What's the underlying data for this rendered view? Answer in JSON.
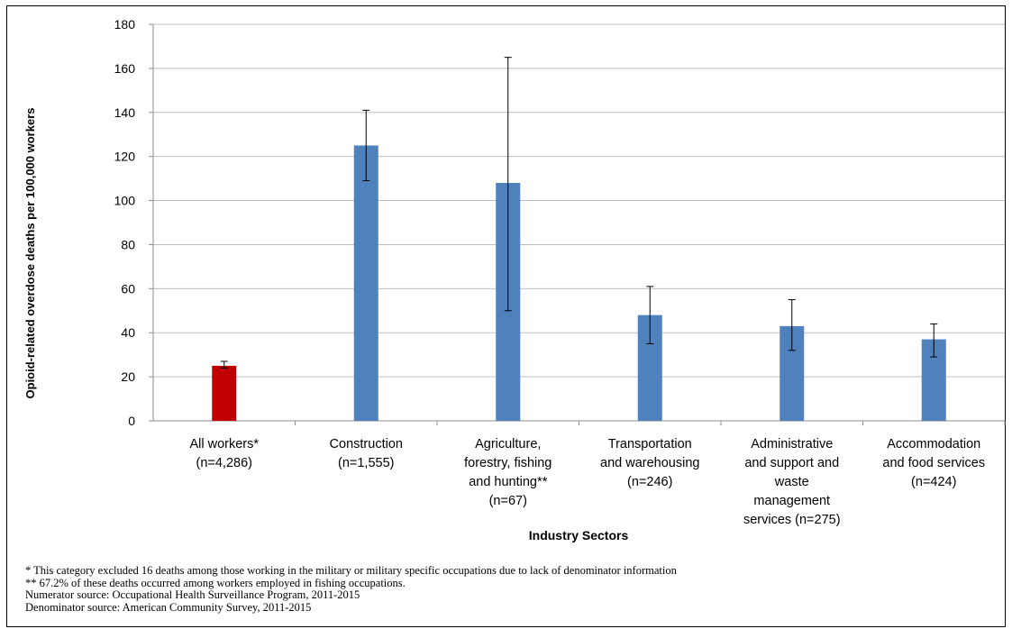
{
  "chart_data": {
    "type": "bar",
    "title": "",
    "xlabel": "Industry Sectors",
    "ylabel": "Opioid-related overdose deaths per 100,000 workers",
    "ylim": [
      0,
      180
    ],
    "yticks": [
      0,
      20,
      40,
      60,
      80,
      100,
      120,
      140,
      160,
      180
    ],
    "grid": true,
    "categories": [
      [
        "All workers*",
        "(n=4,286)"
      ],
      [
        "Construction",
        "(n=1,555)"
      ],
      [
        "Agriculture,",
        "forestry, fishing",
        "and hunting**",
        "(n=67)"
      ],
      [
        "Transportation",
        "and warehousing",
        "(n=246)"
      ],
      [
        "Administrative",
        "and support and",
        "waste",
        "management",
        "services (n=275)"
      ],
      [
        "Accommodation",
        "and food services",
        "(n=424)"
      ]
    ],
    "values": [
      25,
      125,
      108,
      48,
      43,
      37
    ],
    "error_low": [
      24,
      109,
      50,
      35,
      32,
      29
    ],
    "error_high": [
      27,
      141,
      165,
      61,
      55,
      44
    ],
    "colors": [
      "#c00000",
      "#4f81bd",
      "#4f81bd",
      "#4f81bd",
      "#4f81bd",
      "#4f81bd"
    ]
  },
  "notes": [
    "* This category excluded 16 deaths among those working in the military or military specific occupations due to lack of denominator information",
    "** 67.2% of these deaths occurred among workers employed in fishing occupations.",
    "Numerator source: Occupational Health Surveillance Program, 2011-2015",
    "Denominator source: American Community Survey, 2011-2015"
  ]
}
